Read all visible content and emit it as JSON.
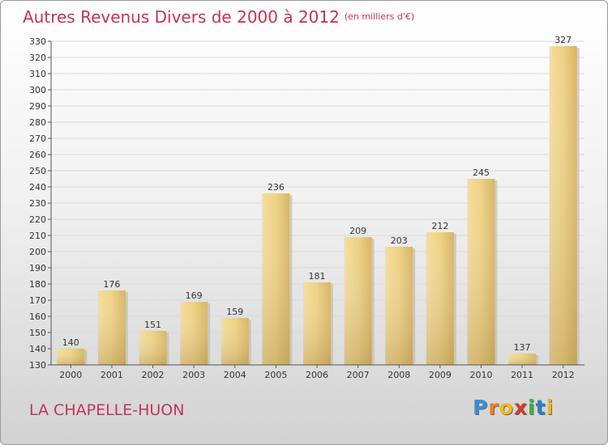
{
  "chart_data": {
    "type": "bar",
    "title": "Autres Revenus Divers de 2000 à 2012",
    "subtitle": "(en milliers d'€)",
    "categories": [
      "2000",
      "2001",
      "2002",
      "2003",
      "2004",
      "2005",
      "2006",
      "2007",
      "2008",
      "2009",
      "2010",
      "2011",
      "2012"
    ],
    "values": [
      140,
      176,
      151,
      169,
      159,
      236,
      181,
      209,
      203,
      212,
      245,
      137,
      327
    ],
    "ylim": [
      130,
      330
    ],
    "yticks": [
      130,
      140,
      150,
      160,
      170,
      180,
      190,
      200,
      210,
      220,
      230,
      240,
      250,
      260,
      270,
      280,
      290,
      300,
      310,
      320,
      330
    ],
    "grid": true,
    "bar_color": "#e8ca79"
  },
  "place": "LA CHAPELLE-HUON",
  "logo": {
    "letters": [
      "P",
      "r",
      "o",
      "x",
      "i",
      "t",
      "i"
    ],
    "colors": [
      "#3a8fd9",
      "#f07d1c",
      "#f2b81a",
      "#d63a2e",
      "#3fae49",
      "#2e7dc6",
      "#f2b81a"
    ]
  },
  "colors": {
    "title": "#c4335a"
  }
}
